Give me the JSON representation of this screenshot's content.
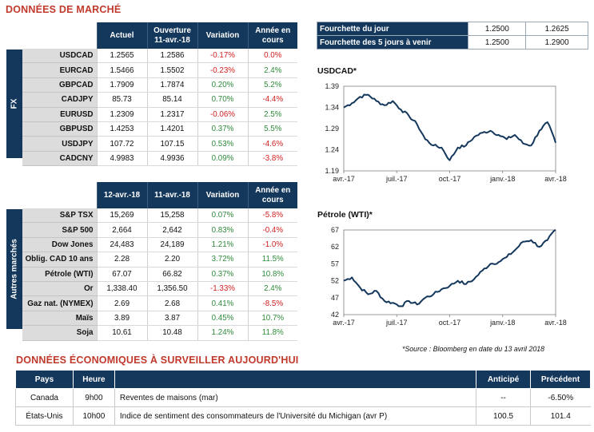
{
  "market": {
    "title": "DONNÉES DE MARCHÉ",
    "fx_label": "FX",
    "fx_headers": [
      "Actuel",
      "Ouverture\n11-avr.-18",
      "Variation",
      "Année en\ncours"
    ],
    "fx_rows": [
      {
        "pair": "USDCAD",
        "cur": "1.2565",
        "open": "1.2586",
        "chg": "-0.17%",
        "ytd": "0.0%",
        "chg_dir": "neg",
        "ytd_dir": "neg"
      },
      {
        "pair": "EURCAD",
        "cur": "1.5466",
        "open": "1.5502",
        "chg": "-0.23%",
        "ytd": "2.4%",
        "chg_dir": "neg",
        "ytd_dir": "pos"
      },
      {
        "pair": "GBPCAD",
        "cur": "1.7909",
        "open": "1.7874",
        "chg": "0.20%",
        "ytd": "5.2%",
        "chg_dir": "pos",
        "ytd_dir": "pos"
      },
      {
        "pair": "CADJPY",
        "cur": "85.73",
        "open": "85.14",
        "chg": "0.70%",
        "ytd": "-4.4%",
        "chg_dir": "pos",
        "ytd_dir": "neg"
      },
      {
        "pair": "EURUSD",
        "cur": "1.2309",
        "open": "1.2317",
        "chg": "-0.06%",
        "ytd": "2.5%",
        "chg_dir": "neg",
        "ytd_dir": "pos"
      },
      {
        "pair": "GBPUSD",
        "cur": "1.4253",
        "open": "1.4201",
        "chg": "0.37%",
        "ytd": "5.5%",
        "chg_dir": "pos",
        "ytd_dir": "pos"
      },
      {
        "pair": "USDJPY",
        "cur": "107.72",
        "open": "107.15",
        "chg": "0.53%",
        "ytd": "-4.6%",
        "chg_dir": "pos",
        "ytd_dir": "neg"
      },
      {
        "pair": "CADCNY",
        "cur": "4.9983",
        "open": "4.9936",
        "chg": "0.09%",
        "ytd": "-3.8%",
        "chg_dir": "pos",
        "ytd_dir": "neg"
      }
    ],
    "other_label": "Autres marchés",
    "other_headers": [
      "12-avr.-18",
      "11-avr.-18",
      "Variation",
      "Année en\ncours"
    ],
    "other_rows": [
      {
        "name": "S&P TSX",
        "cur": "15,269",
        "prev": "15,258",
        "chg": "0.07%",
        "ytd": "-5.8%",
        "chg_dir": "pos",
        "ytd_dir": "neg"
      },
      {
        "name": "S&P 500",
        "cur": "2,664",
        "prev": "2,642",
        "chg": "0.83%",
        "ytd": "-0.4%",
        "chg_dir": "pos",
        "ytd_dir": "neg"
      },
      {
        "name": "Dow Jones",
        "cur": "24,483",
        "prev": "24,189",
        "chg": "1.21%",
        "ytd": "-1.0%",
        "chg_dir": "pos",
        "ytd_dir": "neg"
      },
      {
        "name": "Oblig. CAD 10 ans",
        "cur": "2.28",
        "prev": "2.20",
        "chg": "3.72%",
        "ytd": "11.5%",
        "chg_dir": "pos",
        "ytd_dir": "pos"
      },
      {
        "name": "Pétrole (WTI)",
        "cur": "67.07",
        "prev": "66.82",
        "chg": "0.37%",
        "ytd": "10.8%",
        "chg_dir": "pos",
        "ytd_dir": "pos"
      },
      {
        "name": "Or",
        "cur": "1,338.40",
        "prev": "1,356.50",
        "chg": "-1.33%",
        "ytd": "2.4%",
        "chg_dir": "neg",
        "ytd_dir": "pos"
      },
      {
        "name": "Gaz nat. (NYMEX)",
        "cur": "2.69",
        "prev": "2.68",
        "chg": "0.41%",
        "ytd": "-8.5%",
        "chg_dir": "pos",
        "ytd_dir": "neg"
      },
      {
        "name": "Maïs",
        "cur": "3.89",
        "prev": "3.87",
        "chg": "0.45%",
        "ytd": "10.7%",
        "chg_dir": "pos",
        "ytd_dir": "pos"
      },
      {
        "name": "Soja",
        "cur": "10.61",
        "prev": "10.48",
        "chg": "1.24%",
        "ytd": "11.8%",
        "chg_dir": "pos",
        "ytd_dir": "pos"
      }
    ]
  },
  "ranges": [
    {
      "label": "Fourchette du jour",
      "low": "1.2500",
      "high": "1.2625"
    },
    {
      "label": "Fourchette des 5 jours à venir",
      "low": "1.2500",
      "high": "1.2900"
    }
  ],
  "chart_data": [
    {
      "type": "line",
      "title": "USDCAD*",
      "x_ticks": [
        "avr.-17",
        "juil.-17",
        "oct.-17",
        "janv.-18",
        "avr.-18"
      ],
      "y_ticks": [
        "1.39",
        "1.34",
        "1.29",
        "1.24",
        "1.19"
      ],
      "ylim": [
        1.19,
        1.39
      ],
      "x": [
        0,
        2,
        4,
        6,
        8,
        10,
        12,
        14,
        16,
        18,
        20,
        22,
        24,
        26,
        28,
        30,
        32,
        34,
        36,
        38,
        40,
        42,
        44,
        46,
        48,
        50,
        52
      ],
      "values": [
        1.34,
        1.35,
        1.365,
        1.37,
        1.355,
        1.345,
        1.355,
        1.335,
        1.32,
        1.3,
        1.265,
        1.25,
        1.245,
        1.215,
        1.245,
        1.25,
        1.27,
        1.28,
        1.285,
        1.275,
        1.265,
        1.275,
        1.255,
        1.25,
        1.285,
        1.305,
        1.2565
      ]
    },
    {
      "type": "line",
      "title": "Pétrole (WTI)*",
      "x_ticks": [
        "avr.-17",
        "juil.-17",
        "oct.-17",
        "janv.-18",
        "avr.-18"
      ],
      "y_ticks": [
        "67",
        "62",
        "57",
        "52",
        "47",
        "42"
      ],
      "ylim": [
        42,
        67
      ],
      "x": [
        0,
        2,
        4,
        6,
        8,
        10,
        12,
        14,
        16,
        18,
        20,
        22,
        24,
        26,
        28,
        30,
        32,
        34,
        36,
        38,
        40,
        42,
        44,
        46,
        48,
        50,
        52
      ],
      "values": [
        52,
        53,
        50,
        48,
        49,
        46,
        45.5,
        44.5,
        46,
        45,
        47,
        48,
        49.5,
        50.5,
        52,
        51,
        52.5,
        55,
        57,
        57.5,
        59,
        61,
        63.5,
        64,
        62,
        64,
        67.07
      ]
    }
  ],
  "source_note": "*Source : Bloomberg en date du  13 avril 2018",
  "economic": {
    "title": "DONNÉES ÉCONOMIQUES À SURVEILLER AUJOURD'HUI",
    "headers": {
      "country": "Pays",
      "time": "Heure",
      "event": "",
      "forecast": "Anticipé",
      "previous": "Précédent"
    },
    "rows": [
      {
        "country": "Canada",
        "time": "9h00",
        "event": "Reventes de maisons (mar)",
        "forecast": "--",
        "previous": "-6.50%"
      },
      {
        "country": "États-Unis",
        "time": "10h00",
        "event": "Indice de sentiment des consommateurs de l'Université du Michigan (avr P)",
        "forecast": "100.5",
        "previous": "101.4"
      }
    ]
  },
  "colors": {
    "navy": "#14375c",
    "title_red": "#c0392b",
    "positive": "#2e8b3a",
    "negative": "#d01f1f"
  }
}
